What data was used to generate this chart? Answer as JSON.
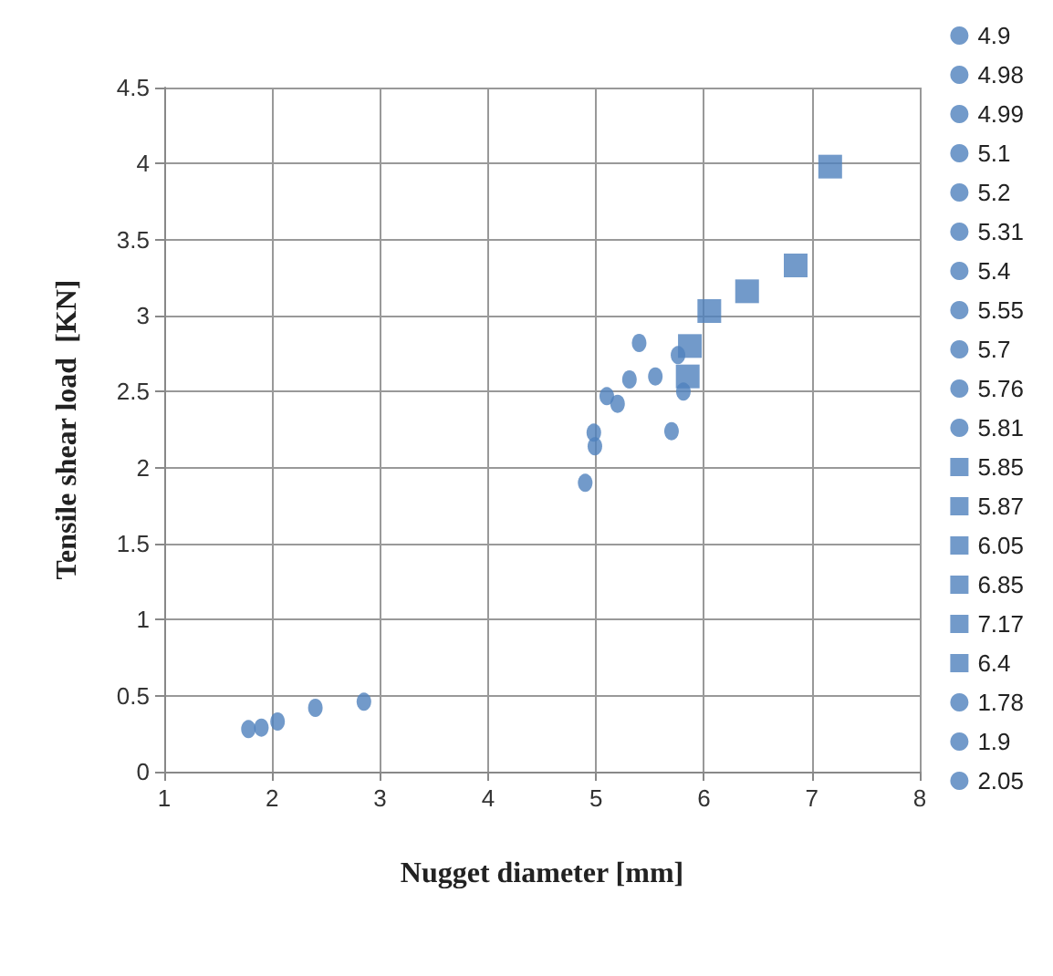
{
  "chart_data": {
    "type": "scatter",
    "xlabel": "Nugget diameter [mm]",
    "ylabel": "Tensile shear load  [KN]",
    "xlim": [
      1,
      8
    ],
    "xticks": [
      1,
      2,
      3,
      4,
      5,
      6,
      7,
      8
    ],
    "ylim": [
      0,
      4.5
    ],
    "yticks": [
      0,
      0.5,
      1,
      1.5,
      2,
      2.5,
      3,
      3.5,
      4,
      4.5
    ],
    "grid": true,
    "legend": "right",
    "series": [
      {
        "name": "4.9",
        "color": "#4f81bd",
        "marker": "circle",
        "x": [
          4.9
        ],
        "values": [
          1.9
        ]
      },
      {
        "name": "4.98",
        "color": "#4f81bd",
        "marker": "circle",
        "x": [
          4.98
        ],
        "values": [
          2.23
        ]
      },
      {
        "name": "4.99",
        "color": "#4f81bd",
        "marker": "circle",
        "x": [
          4.99
        ],
        "values": [
          2.14
        ]
      },
      {
        "name": "5.1",
        "color": "#4f81bd",
        "marker": "circle",
        "x": [
          5.1
        ],
        "values": [
          2.47
        ]
      },
      {
        "name": "5.2",
        "color": "#4f81bd",
        "marker": "circle",
        "x": [
          5.2
        ],
        "values": [
          2.42
        ]
      },
      {
        "name": "5.31",
        "color": "#4f81bd",
        "marker": "circle",
        "x": [
          5.31
        ],
        "values": [
          2.58
        ]
      },
      {
        "name": "5.4",
        "color": "#4f81bd",
        "marker": "circle",
        "x": [
          5.4
        ],
        "values": [
          2.82
        ]
      },
      {
        "name": "5.55",
        "color": "#4f81bd",
        "marker": "circle",
        "x": [
          5.55
        ],
        "values": [
          2.6
        ]
      },
      {
        "name": "5.7",
        "color": "#4f81bd",
        "marker": "circle",
        "x": [
          5.7
        ],
        "values": [
          2.24
        ]
      },
      {
        "name": "5.76",
        "color": "#4f81bd",
        "marker": "circle",
        "x": [
          5.76
        ],
        "values": [
          2.74
        ]
      },
      {
        "name": "5.81",
        "color": "#4f81bd",
        "marker": "circle",
        "x": [
          5.81
        ],
        "values": [
          2.5
        ]
      },
      {
        "name": "5.85",
        "color": "#4f81bd",
        "marker": "square",
        "x": [
          5.85
        ],
        "values": [
          2.6
        ]
      },
      {
        "name": "5.87",
        "color": "#4f81bd",
        "marker": "square",
        "x": [
          5.87
        ],
        "values": [
          2.8
        ]
      },
      {
        "name": "6.05",
        "color": "#4f81bd",
        "marker": "square",
        "x": [
          6.05
        ],
        "values": [
          3.03
        ]
      },
      {
        "name": "6.85",
        "color": "#4f81bd",
        "marker": "square",
        "x": [
          6.85
        ],
        "values": [
          3.33
        ]
      },
      {
        "name": "7.17",
        "color": "#4f81bd",
        "marker": "square",
        "x": [
          7.17
        ],
        "values": [
          3.98
        ]
      },
      {
        "name": "6.4",
        "color": "#4f81bd",
        "marker": "square",
        "x": [
          6.4
        ],
        "values": [
          3.16
        ]
      },
      {
        "name": "1.78",
        "color": "#4f81bd",
        "marker": "circle",
        "x": [
          1.78
        ],
        "values": [
          0.28
        ]
      },
      {
        "name": "1.9",
        "color": "#4f81bd",
        "marker": "circle",
        "x": [
          1.9
        ],
        "values": [
          0.29
        ]
      },
      {
        "name": "2.05",
        "color": "#4f81bd",
        "marker": "circle",
        "x": [
          2.05
        ],
        "values": [
          0.33
        ]
      },
      {
        "color": "#4f81bd",
        "marker": "circle",
        "x": [
          2.4
        ],
        "values": [
          0.42
        ]
      },
      {
        "color": "#4f81bd",
        "marker": "circle",
        "x": [
          2.85
        ],
        "values": [
          0.46
        ]
      }
    ]
  }
}
